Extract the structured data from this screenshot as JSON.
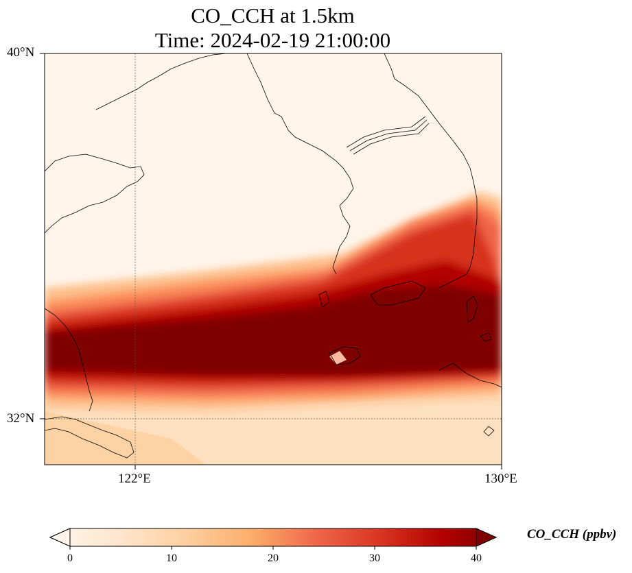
{
  "title": {
    "line1": "CO_CCH at 1.5km",
    "line2": "Time: 2024-02-19 21:00:00"
  },
  "map": {
    "lat_labels": [
      "40°N",
      "32°N"
    ],
    "lon_labels": [
      "122°E",
      "130°E"
    ],
    "extent": {
      "lon": [
        120.4,
        130.0
      ],
      "lat": [
        31.0,
        40.0
      ]
    },
    "gridlines": {
      "lon": [
        122,
        130
      ],
      "lat": [
        32,
        40
      ],
      "style": "dotted"
    },
    "plume_color": "#7f0000",
    "background_color": "#fff5eb"
  },
  "colorbar": {
    "label": "CO_CCH (ppbv)",
    "ticks": [
      "0",
      "10",
      "20",
      "30",
      "40"
    ],
    "min": 0,
    "max": 40,
    "extend": "both",
    "colormap": "OrRd",
    "colors": [
      "#fff5eb",
      "#fee6ce",
      "#fdd0a2",
      "#fdae6b",
      "#f16913",
      "#d94801",
      "#a63603",
      "#7f2704",
      "#7f0000"
    ]
  }
}
